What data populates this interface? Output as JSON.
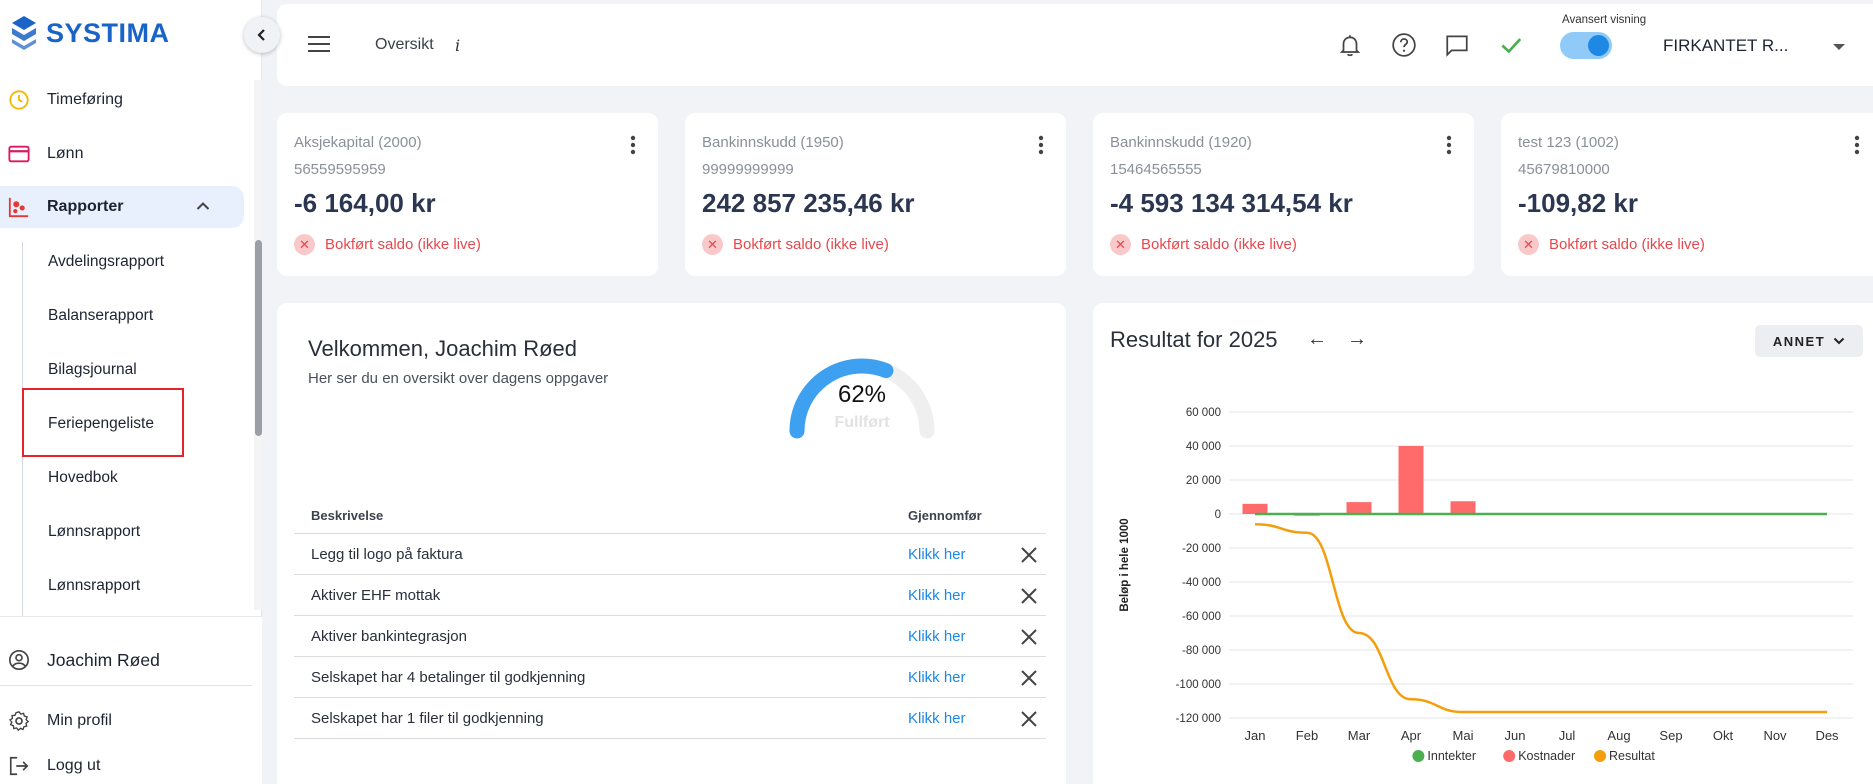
{
  "app": {
    "brand": "SYSTIMA"
  },
  "sidebar": {
    "items": [
      {
        "label": "Timeføring"
      },
      {
        "label": "Lønn"
      },
      {
        "label": "Rapporter"
      }
    ],
    "subitems": [
      {
        "label": "Avdelingsrapport"
      },
      {
        "label": "Balanserapport"
      },
      {
        "label": "Bilagsjournal"
      },
      {
        "label": "Feriepengeliste"
      },
      {
        "label": "Hovedbok"
      },
      {
        "label": "Lønnsrapport"
      },
      {
        "label": "Lønnsrapport"
      }
    ],
    "user_name": "Joachim Røed",
    "profile_label": "Min profil",
    "logout_label": "Logg ut"
  },
  "header": {
    "title": "Oversikt",
    "info": "i",
    "advanced_label": "Avansert visning",
    "company": "FIRKANTET R..."
  },
  "accounts": [
    {
      "name": "Aksjekapital (2000)",
      "number": "56559595959",
      "balance": "-6 164,00 kr",
      "status": "Bokført saldo (ikke live)"
    },
    {
      "name": "Bankinnskudd (1950)",
      "number": "99999999999",
      "balance": "242 857 235,46 kr",
      "status": "Bokført saldo (ikke live)"
    },
    {
      "name": "Bankinnskudd (1920)",
      "number": "15464565555",
      "balance": "-4 593 134 314,54 kr",
      "status": "Bokført saldo (ikke live)"
    },
    {
      "name": "test 123 (1002)",
      "number": "45679810000",
      "balance": "-109,82 kr",
      "status": "Bokført saldo (ikke live)"
    }
  ],
  "welcome": {
    "title": "Velkommen, Joachim Røed",
    "subtitle": "Her ser du en oversikt over dagens oppgaver",
    "progress_value": 62,
    "progress_text": "62%",
    "progress_label": "Fullført",
    "table": {
      "col_description": "Beskrivelse",
      "col_action": "Gjennomfør",
      "rows": [
        {
          "desc": "Legg til logo på faktura",
          "action": "Klikk her"
        },
        {
          "desc": "Aktiver EHF mottak",
          "action": "Klikk her"
        },
        {
          "desc": "Aktiver bankintegrasjon",
          "action": "Klikk her"
        },
        {
          "desc": "Selskapet har 4 betalinger til godkjenning",
          "action": "Klikk her"
        },
        {
          "desc": "Selskapet har 1 filer til godkjenning",
          "action": "Klikk her"
        }
      ]
    }
  },
  "chart_panel": {
    "title": "Resultat for 2025",
    "prev_arrow": "←",
    "next_arrow": "→",
    "filter_label": "ANNET"
  },
  "chart_data": {
    "type": "bar",
    "ylabel": "Beløp i hele 1000",
    "ylim": [
      -120000,
      60000
    ],
    "yticks": [
      60000,
      40000,
      20000,
      0,
      -20000,
      -40000,
      -60000,
      -80000,
      -100000,
      -120000
    ],
    "ytick_labels": [
      "60 000",
      "40 000",
      "20 000",
      "0",
      "-20 000",
      "-40 000",
      "-60 000",
      "-80 000",
      "-100 000",
      "-120 000"
    ],
    "categories": [
      "Jan",
      "Feb",
      "Mar",
      "Apr",
      "Mai",
      "Jun",
      "Jul",
      "Aug",
      "Sep",
      "Okt",
      "Nov",
      "Des"
    ],
    "series": [
      {
        "name": "Inntekter",
        "type": "line",
        "color": "#4caf50",
        "values": [
          0,
          0,
          0,
          0,
          0,
          0,
          0,
          0,
          0,
          0,
          0,
          0
        ]
      },
      {
        "name": "Kostnader",
        "type": "bar",
        "color": "#ff6b6b",
        "values": [
          6000,
          -1000,
          7000,
          40000,
          7500,
          0,
          0,
          0,
          0,
          0,
          0,
          0
        ]
      },
      {
        "name": "Resultat",
        "type": "line",
        "color": "#f59e0b",
        "values": [
          -6000,
          -11000,
          -70000,
          -109000,
          -116500,
          -116500,
          -116500,
          -116500,
          -116500,
          -116500,
          -116500,
          -116500
        ]
      }
    ]
  }
}
